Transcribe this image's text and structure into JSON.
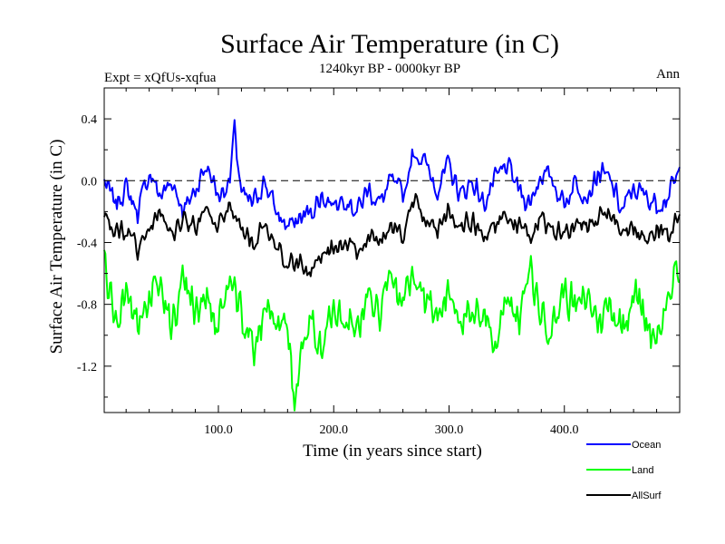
{
  "chart_data": {
    "type": "line",
    "title": "Surface Air Temperature (in C)",
    "subtitle": "1240kyr BP - 0000kyr BP",
    "left_label": "Expt = xQfUs-xqfua",
    "right_label": "Ann",
    "xlabel": "Time (in years since start)",
    "ylabel": "Surface Air Temperature (in C)",
    "xlim": [
      1,
      500
    ],
    "ylim": [
      -1.5,
      0.6
    ],
    "xticks": [
      100,
      200,
      300,
      400
    ],
    "xtick_labels": [
      "100.0",
      "200.0",
      "300.0",
      "400.0"
    ],
    "yticks": [
      0.4,
      0.0,
      -0.4,
      -0.8,
      -1.2
    ],
    "ytick_labels": [
      "0.4",
      "0.0",
      "-0.4",
      "-0.8",
      "-1.2"
    ],
    "reference_line": {
      "y": 0.0,
      "style": "dashed"
    },
    "legend_position": "bottom-right",
    "series": [
      {
        "name": "Ocean",
        "color": "#0000ff",
        "x": [
          1,
          10,
          20,
          30,
          40,
          50,
          60,
          70,
          80,
          90,
          100,
          110,
          114,
          120,
          130,
          140,
          150,
          160,
          170,
          180,
          190,
          200,
          210,
          220,
          230,
          240,
          250,
          260,
          270,
          280,
          290,
          300,
          310,
          320,
          330,
          340,
          350,
          360,
          370,
          380,
          390,
          400,
          410,
          420,
          430,
          440,
          450,
          460,
          470,
          480,
          490,
          500
        ],
        "values": [
          0.0,
          -0.15,
          -0.05,
          -0.2,
          0.05,
          -0.1,
          0.0,
          -0.2,
          -0.05,
          0.1,
          -0.1,
          0.0,
          0.33,
          -0.1,
          -0.15,
          0.0,
          -0.2,
          -0.3,
          -0.25,
          -0.2,
          -0.1,
          -0.15,
          -0.1,
          -0.2,
          -0.05,
          -0.15,
          0.0,
          -0.1,
          0.2,
          0.1,
          -0.05,
          0.1,
          -0.1,
          0.0,
          -0.15,
          0.0,
          0.1,
          -0.05,
          -0.15,
          0.05,
          0.0,
          -0.15,
          0.0,
          -0.1,
          0.05,
          0.0,
          -0.2,
          -0.05,
          -0.1,
          -0.15,
          -0.1,
          0.05
        ]
      },
      {
        "name": "Land",
        "color": "#00ff00",
        "x": [
          1,
          10,
          20,
          30,
          40,
          50,
          60,
          70,
          80,
          90,
          100,
          110,
          120,
          130,
          140,
          150,
          160,
          166,
          170,
          180,
          190,
          200,
          210,
          220,
          230,
          240,
          250,
          260,
          270,
          280,
          290,
          300,
          310,
          320,
          330,
          340,
          350,
          360,
          370,
          380,
          390,
          400,
          410,
          420,
          430,
          440,
          450,
          460,
          470,
          480,
          490,
          500
        ],
        "values": [
          -0.5,
          -0.9,
          -0.7,
          -1.0,
          -0.8,
          -0.7,
          -0.95,
          -0.6,
          -0.85,
          -0.75,
          -1.0,
          -0.6,
          -0.9,
          -1.1,
          -0.8,
          -0.95,
          -0.9,
          -1.45,
          -1.2,
          -0.9,
          -1.1,
          -0.8,
          -0.85,
          -1.0,
          -0.7,
          -0.9,
          -0.6,
          -0.8,
          -0.55,
          -0.75,
          -0.9,
          -0.7,
          -0.85,
          -0.95,
          -0.8,
          -1.1,
          -0.7,
          -0.9,
          -0.6,
          -0.85,
          -0.95,
          -0.7,
          -0.85,
          -0.75,
          -0.9,
          -0.8,
          -0.95,
          -0.7,
          -0.9,
          -1.0,
          -0.75,
          -0.6
        ]
      },
      {
        "name": "AllSurf",
        "color": "#000000",
        "x": [
          1,
          10,
          20,
          30,
          40,
          50,
          60,
          70,
          80,
          90,
          100,
          110,
          120,
          130,
          140,
          150,
          160,
          170,
          180,
          190,
          200,
          210,
          220,
          230,
          240,
          250,
          260,
          270,
          280,
          290,
          300,
          310,
          320,
          330,
          340,
          350,
          360,
          370,
          380,
          390,
          400,
          410,
          420,
          430,
          440,
          450,
          460,
          470,
          480,
          490,
          500
        ],
        "values": [
          -0.2,
          -0.35,
          -0.3,
          -0.45,
          -0.3,
          -0.2,
          -0.35,
          -0.25,
          -0.3,
          -0.2,
          -0.3,
          -0.15,
          -0.3,
          -0.4,
          -0.3,
          -0.45,
          -0.5,
          -0.55,
          -0.6,
          -0.5,
          -0.45,
          -0.4,
          -0.45,
          -0.35,
          -0.4,
          -0.3,
          -0.35,
          -0.15,
          -0.25,
          -0.35,
          -0.2,
          -0.3,
          -0.25,
          -0.35,
          -0.3,
          -0.2,
          -0.3,
          -0.35,
          -0.25,
          -0.3,
          -0.35,
          -0.25,
          -0.3,
          -0.25,
          -0.2,
          -0.35,
          -0.3,
          -0.4,
          -0.3,
          -0.35,
          -0.25
        ]
      }
    ]
  }
}
